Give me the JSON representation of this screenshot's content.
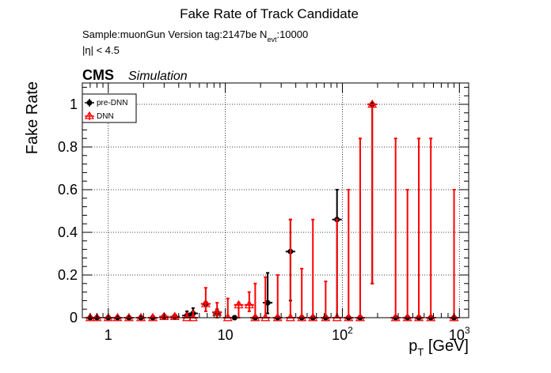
{
  "chart_data": {
    "type": "scatter",
    "title": "Fake Rate of Track Candidate",
    "subtitle_line1": "Sample:muonGun   Version tag:2147be  N",
    "subtitle_line1_sub": "evt",
    "subtitle_line1_tail": ":10000",
    "subtitle_line2": "|η| < 4.5",
    "cms_label": "CMS",
    "simulation_label": "Simulation",
    "ylabel": "Fake Rate",
    "xlabel_main": "p",
    "xlabel_sub": "T",
    "xlabel_tail": " [GeV]",
    "x_scale": "log",
    "xlim": [
      0.6,
      1200
    ],
    "ylim": [
      0,
      1.1
    ],
    "grid": true,
    "legend_position": "top-left",
    "x_ticks": [
      {
        "value": 1,
        "label": "1",
        "exp": ""
      },
      {
        "value": 10,
        "label": "10",
        "exp": ""
      },
      {
        "value": 100,
        "label": "10",
        "exp": "2"
      },
      {
        "value": 1000,
        "label": "10",
        "exp": "3"
      }
    ],
    "y_ticks": [
      {
        "value": 0,
        "label": "0"
      },
      {
        "value": 0.2,
        "label": "0.2"
      },
      {
        "value": 0.4,
        "label": "0.4"
      },
      {
        "value": 0.6,
        "label": "0.6"
      },
      {
        "value": 0.8,
        "label": "0.8"
      },
      {
        "value": 1,
        "label": "1"
      }
    ],
    "series": [
      {
        "name": "pre-DNN",
        "color": "#000000",
        "marker": "filled-circle",
        "points": [
          {
            "x": 0.7,
            "y": 0.0,
            "lo": 0.0,
            "hi": 0.0
          },
          {
            "x": 0.8,
            "y": 0.0,
            "lo": 0.0,
            "hi": 0.0
          },
          {
            "x": 1.0,
            "y": 0.0,
            "lo": 0.0,
            "hi": 0.0
          },
          {
            "x": 1.2,
            "y": 0.0,
            "lo": 0.0,
            "hi": 0.0
          },
          {
            "x": 1.5,
            "y": 0.0,
            "lo": 0.0,
            "hi": 0.0
          },
          {
            "x": 1.9,
            "y": 0.0,
            "lo": 0.0,
            "hi": 0.0
          },
          {
            "x": 2.4,
            "y": 0.0,
            "lo": 0.0,
            "hi": 0.01
          },
          {
            "x": 3.0,
            "y": 0.005,
            "lo": 0.0,
            "hi": 0.015
          },
          {
            "x": 3.7,
            "y": 0.005,
            "lo": 0.0,
            "hi": 0.015
          },
          {
            "x": 4.7,
            "y": 0.01,
            "lo": 0.0,
            "hi": 0.03
          },
          {
            "x": 5.3,
            "y": 0.02,
            "lo": 0.0,
            "hi": 0.045
          },
          {
            "x": 6.8,
            "y": 0.065,
            "lo": 0.055,
            "hi": 0.075
          },
          {
            "x": 8.5,
            "y": 0.025,
            "lo": 0.01,
            "hi": 0.04
          },
          {
            "x": 12.0,
            "y": 0.0,
            "lo": 0.0,
            "hi": 0.0
          },
          {
            "x": 18.0,
            "y": 0.0,
            "lo": 0.0,
            "hi": 0.0
          },
          {
            "x": 23.0,
            "y": 0.07,
            "lo": 0.02,
            "hi": 0.21
          },
          {
            "x": 28.0,
            "y": 0.0,
            "lo": 0.0,
            "hi": 0.0
          },
          {
            "x": 36.0,
            "y": 0.31,
            "lo": 0.08,
            "hi": 0.46
          },
          {
            "x": 45.0,
            "y": 0.0,
            "lo": 0.0,
            "hi": 0.0
          },
          {
            "x": 56.0,
            "y": 0.0,
            "lo": 0.0,
            "hi": 0.0
          },
          {
            "x": 72.0,
            "y": 0.0,
            "lo": 0.0,
            "hi": 0.0
          },
          {
            "x": 90.0,
            "y": 0.46,
            "lo": 0.0,
            "hi": 0.6
          },
          {
            "x": 113.0,
            "y": 0.0,
            "lo": 0.0,
            "hi": 0.0
          },
          {
            "x": 142.0,
            "y": 0.0,
            "lo": 0.0,
            "hi": 0.0
          },
          {
            "x": 180.0,
            "y": 1.0,
            "lo": 0.16,
            "hi": 1.0
          },
          {
            "x": 285.0,
            "y": 0.0,
            "lo": 0.0,
            "hi": 0.0
          },
          {
            "x": 360.0,
            "y": 0.0,
            "lo": 0.0,
            "hi": 0.0
          },
          {
            "x": 450.0,
            "y": 0.0,
            "lo": 0.0,
            "hi": 0.0
          },
          {
            "x": 570.0,
            "y": 0.0,
            "lo": 0.0,
            "hi": 0.0
          },
          {
            "x": 900.0,
            "y": 0.0,
            "lo": 0.0,
            "hi": 0.0
          }
        ]
      },
      {
        "name": "DNN",
        "color": "#ff0000",
        "marker": "open-triangle",
        "points": [
          {
            "x": 0.7,
            "y": 0.0,
            "lo": 0.0,
            "hi": 0.0
          },
          {
            "x": 0.8,
            "y": 0.0,
            "lo": 0.0,
            "hi": 0.0
          },
          {
            "x": 1.0,
            "y": 0.0,
            "lo": 0.0,
            "hi": 0.0
          },
          {
            "x": 1.2,
            "y": 0.0,
            "lo": 0.0,
            "hi": 0.0
          },
          {
            "x": 1.5,
            "y": 0.0,
            "lo": 0.0,
            "hi": 0.0
          },
          {
            "x": 1.9,
            "y": 0.0,
            "lo": 0.0,
            "hi": 0.0
          },
          {
            "x": 2.4,
            "y": 0.0,
            "lo": 0.0,
            "hi": 0.01
          },
          {
            "x": 3.0,
            "y": 0.005,
            "lo": 0.0,
            "hi": 0.015
          },
          {
            "x": 3.7,
            "y": 0.005,
            "lo": 0.0,
            "hi": 0.015
          },
          {
            "x": 4.7,
            "y": 0.0,
            "lo": 0.0,
            "hi": 0.02
          },
          {
            "x": 5.3,
            "y": 0.0,
            "lo": 0.0,
            "hi": 0.03
          },
          {
            "x": 6.8,
            "y": 0.065,
            "lo": 0.03,
            "hi": 0.14
          },
          {
            "x": 8.5,
            "y": 0.025,
            "lo": 0.0,
            "hi": 0.07
          },
          {
            "x": 10.5,
            "y": 0.0,
            "lo": 0.0,
            "hi": 0.09
          },
          {
            "x": 13.0,
            "y": 0.06,
            "lo": 0.0,
            "hi": 0.07
          },
          {
            "x": 16.0,
            "y": 0.06,
            "lo": 0.03,
            "hi": 0.12
          },
          {
            "x": 18.0,
            "y": 0.0,
            "lo": 0.0,
            "hi": 0.16
          },
          {
            "x": 22.0,
            "y": 0.0,
            "lo": 0.0,
            "hi": 0.19
          },
          {
            "x": 28.0,
            "y": 0.0,
            "lo": 0.0,
            "hi": 0.2
          },
          {
            "x": 36.0,
            "y": 0.0,
            "lo": 0.0,
            "hi": 0.46
          },
          {
            "x": 45.0,
            "y": 0.0,
            "lo": 0.0,
            "hi": 0.23
          },
          {
            "x": 56.0,
            "y": 0.0,
            "lo": 0.0,
            "hi": 0.46
          },
          {
            "x": 72.0,
            "y": 0.0,
            "lo": 0.0,
            "hi": 0.17
          },
          {
            "x": 90.0,
            "y": 0.0,
            "lo": 0.0,
            "hi": 0.46
          },
          {
            "x": 113.0,
            "y": 0.0,
            "lo": 0.0,
            "hi": 0.6
          },
          {
            "x": 142.0,
            "y": 0.0,
            "lo": 0.0,
            "hi": 0.84
          },
          {
            "x": 180.0,
            "y": 1.0,
            "lo": 0.16,
            "hi": 1.0
          },
          {
            "x": 285.0,
            "y": 0.0,
            "lo": 0.0,
            "hi": 0.84
          },
          {
            "x": 360.0,
            "y": 0.0,
            "lo": 0.0,
            "hi": 0.6
          },
          {
            "x": 450.0,
            "y": 0.0,
            "lo": 0.0,
            "hi": 0.84
          },
          {
            "x": 570.0,
            "y": 0.0,
            "lo": 0.0,
            "hi": 0.84
          },
          {
            "x": 900.0,
            "y": 0.0,
            "lo": 0.0,
            "hi": 0.6
          }
        ]
      }
    ]
  }
}
